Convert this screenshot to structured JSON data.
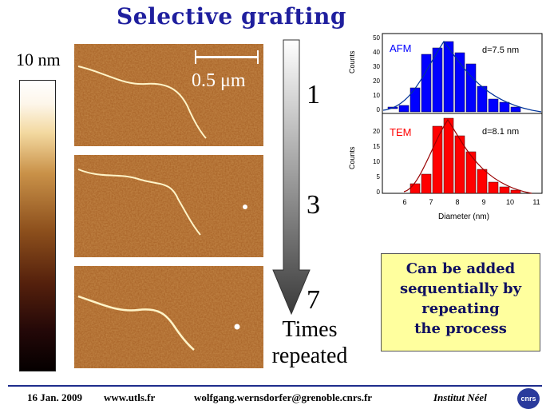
{
  "title": "Selective grafting",
  "colorbar": {
    "label": "10 nm"
  },
  "scalebar": {
    "label": "0.5 μm"
  },
  "repeats": [
    {
      "count": "1"
    },
    {
      "count": "3"
    },
    {
      "count": "7"
    }
  ],
  "times_label": {
    "line1": "Times",
    "line2": "repeated"
  },
  "histograms": [
    {
      "label": "AFM",
      "annotation": "d=7.5 nm",
      "color": "#0000ff",
      "ylabel": "Counts",
      "yticks": [
        "0",
        "10",
        "20",
        "30",
        "40",
        "50"
      ]
    },
    {
      "label": "TEM",
      "annotation": "d=8.1 nm",
      "color": "#ff0000",
      "ylabel": "Counts",
      "yticks": [
        "0",
        "5",
        "10",
        "15",
        "20"
      ]
    }
  ],
  "hist_axis": {
    "xlabel": "Diameter (nm)",
    "xticks": [
      "6",
      "7",
      "8",
      "9",
      "10",
      "11"
    ]
  },
  "callout": {
    "line1": "Can be added",
    "line2": "sequentially by",
    "line3": "repeating",
    "line4": "the process"
  },
  "footer": {
    "date": "16 Jan. 2009",
    "site": "www.utls.fr",
    "email": "wolfgang.wernsdorfer@grenoble.cnrs.fr",
    "institute": "Institut Néel",
    "logo": "cnrs"
  }
}
